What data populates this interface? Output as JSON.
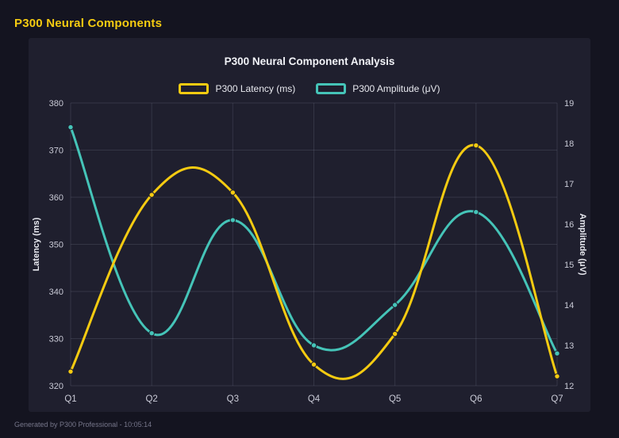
{
  "page": {
    "title": "P300 Neural Components",
    "footer": "Generated by P300 Professional - 10:05:14"
  },
  "colors": {
    "background": "#141420",
    "card_background": "#1f1f2e",
    "accent_yellow": "#f5cb11",
    "accent_teal": "#45c4b8",
    "grid": "rgba(160,165,190,0.16)"
  },
  "chart_data": {
    "type": "line",
    "title": "P300 Neural Component Analysis",
    "x": [
      "Q1",
      "Q2",
      "Q3",
      "Q4",
      "Q5",
      "Q6",
      "Q7"
    ],
    "series": [
      {
        "name": "P300 Latency (ms)",
        "axis": "left",
        "color": "#f5cb11",
        "values": [
          323,
          360.5,
          361,
          324.5,
          331,
          371,
          322
        ]
      },
      {
        "name": "P300 Amplitude (μV)",
        "axis": "right",
        "color": "#45c4b8",
        "values": [
          18.4,
          13.3,
          16.1,
          13.0,
          14.0,
          16.3,
          12.8
        ]
      }
    ],
    "left_axis": {
      "label": "Latency (ms)",
      "min": 320,
      "max": 380,
      "ticks": [
        320,
        330,
        340,
        350,
        360,
        370,
        380
      ]
    },
    "right_axis": {
      "label": "Amplitude (μV)",
      "min": 12,
      "max": 19,
      "ticks": [
        12,
        13,
        14,
        15,
        16,
        17,
        18,
        19
      ]
    },
    "grid": true,
    "legend_position": "top",
    "curve": "spline"
  }
}
